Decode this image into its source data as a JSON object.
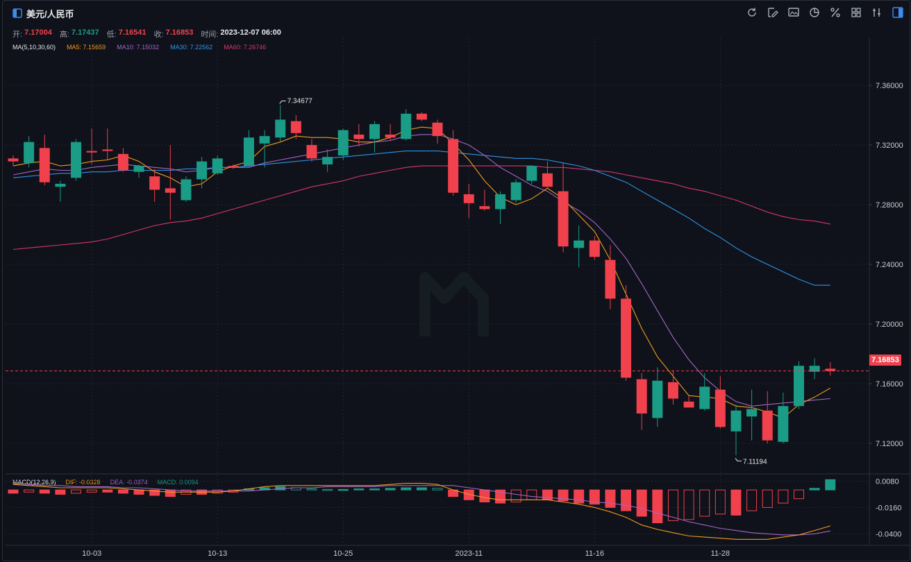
{
  "header": {
    "title": "美元/人民币",
    "icons": [
      "refresh-icon",
      "draw-tool-icon",
      "chart-image-icon",
      "pie-chart-icon",
      "percent-icon",
      "grid-layout-icon",
      "indicator-icon",
      "panel-toggle-icon"
    ]
  },
  "ohlc": {
    "open_label": "开:",
    "open": "7.17004",
    "high_label": "高:",
    "high": "7.17437",
    "low_label": "低:",
    "low": "7.16541",
    "close_label": "收:",
    "close": "7.16853",
    "time_label": "时间:",
    "time": "2023-12-07 06:00"
  },
  "ma_legend": {
    "label": "MA(5,10,30,60)",
    "ma5": "MA5: 7.15659",
    "ma10": "MA10: 7.15032",
    "ma30": "MA30: 7.22562",
    "ma60": "MA60: 7.26746"
  },
  "macd_legend": {
    "label": "MACD(12,26,9)",
    "dif": "DIF: -0.0328",
    "dea": "DEA: -0.0374",
    "macd": "MACD: 0.0094"
  },
  "colors": {
    "up": "#1a9c87",
    "down": "#f0414d",
    "ma5": "#f39c1e",
    "ma10": "#a566c9",
    "ma30": "#2f95ea",
    "ma60": "#d9356f",
    "grid": "#23272f",
    "text": "#c9ccd3"
  },
  "chart_data": {
    "type": "candlestick",
    "price_axis": {
      "min": 7.1,
      "max": 7.38,
      "ticks": [
        "7.36000",
        "7.32000",
        "7.28000",
        "7.24000",
        "7.20000",
        "7.16000",
        "7.12000"
      ]
    },
    "x_ticks": [
      {
        "label": "10-03",
        "index": 5
      },
      {
        "label": "10-13",
        "index": 13
      },
      {
        "label": "10-25",
        "index": 21
      },
      {
        "label": "2023-11",
        "index": 29
      },
      {
        "label": "11-16",
        "index": 37
      },
      {
        "label": "11-28",
        "index": 45
      }
    ],
    "last_price": "7.16853",
    "high_marker": {
      "label": "7.34677",
      "index": 17,
      "value": 7.34677
    },
    "low_marker": {
      "label": "7.11194",
      "index": 46,
      "value": 7.11194
    },
    "candles": [
      {
        "o": 7.311,
        "h": 7.313,
        "c": 7.309,
        "l": 7.306
      },
      {
        "o": 7.308,
        "h": 7.326,
        "c": 7.322,
        "l": 7.305
      },
      {
        "o": 7.318,
        "h": 7.327,
        "c": 7.295,
        "l": 7.293
      },
      {
        "o": 7.292,
        "h": 7.296,
        "c": 7.294,
        "l": 7.282
      },
      {
        "o": 7.298,
        "h": 7.324,
        "c": 7.322,
        "l": 7.296
      },
      {
        "o": 7.316,
        "h": 7.331,
        "c": 7.315,
        "l": 7.307
      },
      {
        "o": 7.317,
        "h": 7.331,
        "c": 7.316,
        "l": 7.31
      },
      {
        "o": 7.314,
        "h": 7.318,
        "c": 7.303,
        "l": 7.302
      },
      {
        "o": 7.302,
        "h": 7.307,
        "c": 7.306,
        "l": 7.298
      },
      {
        "o": 7.299,
        "h": 7.304,
        "c": 7.29,
        "l": 7.282
      },
      {
        "o": 7.291,
        "h": 7.32,
        "c": 7.288,
        "l": 7.27
      },
      {
        "o": 7.283,
        "h": 7.299,
        "c": 7.297,
        "l": 7.282
      },
      {
        "o": 7.297,
        "h": 7.312,
        "c": 7.309,
        "l": 7.291
      },
      {
        "o": 7.301,
        "h": 7.313,
        "c": 7.311,
        "l": 7.3
      },
      {
        "o": 7.306,
        "h": 7.307,
        "c": 7.305,
        "l": 7.304
      },
      {
        "o": 7.306,
        "h": 7.33,
        "c": 7.325,
        "l": 7.305
      },
      {
        "o": 7.321,
        "h": 7.33,
        "c": 7.326,
        "l": 7.305
      },
      {
        "o": 7.325,
        "h": 7.34677,
        "c": 7.337,
        "l": 7.322
      },
      {
        "o": 7.336,
        "h": 7.34,
        "c": 7.328,
        "l": 7.324
      },
      {
        "o": 7.32,
        "h": 7.324,
        "c": 7.311,
        "l": 7.309
      },
      {
        "o": 7.307,
        "h": 7.317,
        "c": 7.312,
        "l": 7.302
      },
      {
        "o": 7.313,
        "h": 7.331,
        "c": 7.33,
        "l": 7.31
      },
      {
        "o": 7.327,
        "h": 7.334,
        "c": 7.324,
        "l": 7.319
      },
      {
        "o": 7.324,
        "h": 7.336,
        "c": 7.334,
        "l": 7.315
      },
      {
        "o": 7.327,
        "h": 7.334,
        "c": 7.325,
        "l": 7.323
      },
      {
        "o": 7.324,
        "h": 7.344,
        "c": 7.341,
        "l": 7.323
      },
      {
        "o": 7.341,
        "h": 7.342,
        "c": 7.337,
        "l": 7.336
      },
      {
        "o": 7.335,
        "h": 7.337,
        "c": 7.326,
        "l": 7.321
      },
      {
        "o": 7.324,
        "h": 7.33,
        "c": 7.288,
        "l": 7.286
      },
      {
        "o": 7.287,
        "h": 7.294,
        "c": 7.281,
        "l": 7.271
      },
      {
        "o": 7.279,
        "h": 7.29,
        "c": 7.277,
        "l": 7.276
      },
      {
        "o": 7.277,
        "h": 7.289,
        "c": 7.287,
        "l": 7.267
      },
      {
        "o": 7.283,
        "h": 7.297,
        "c": 7.295,
        "l": 7.281
      },
      {
        "o": 7.296,
        "h": 7.306,
        "c": 7.306,
        "l": 7.294
      },
      {
        "o": 7.301,
        "h": 7.309,
        "c": 7.292,
        "l": 7.291
      },
      {
        "o": 7.289,
        "h": 7.308,
        "c": 7.252,
        "l": 7.248
      },
      {
        "o": 7.251,
        "h": 7.266,
        "c": 7.256,
        "l": 7.238
      },
      {
        "o": 7.256,
        "h": 7.259,
        "c": 7.245,
        "l": 7.243
      },
      {
        "o": 7.243,
        "h": 7.253,
        "c": 7.217,
        "l": 7.21
      },
      {
        "o": 7.217,
        "h": 7.226,
        "c": 7.164,
        "l": 7.162
      },
      {
        "o": 7.163,
        "h": 7.167,
        "c": 7.14,
        "l": 7.129
      },
      {
        "o": 7.137,
        "h": 7.171,
        "c": 7.162,
        "l": 7.131
      },
      {
        "o": 7.161,
        "h": 7.169,
        "c": 7.15,
        "l": 7.146
      },
      {
        "o": 7.148,
        "h": 7.152,
        "c": 7.144,
        "l": 7.144
      },
      {
        "o": 7.143,
        "h": 7.167,
        "c": 7.158,
        "l": 7.142
      },
      {
        "o": 7.156,
        "h": 7.165,
        "c": 7.131,
        "l": 7.13
      },
      {
        "o": 7.128,
        "h": 7.146,
        "c": 7.142,
        "l": 7.11194
      },
      {
        "o": 7.138,
        "h": 7.156,
        "c": 7.143,
        "l": 7.122
      },
      {
        "o": 7.142,
        "h": 7.155,
        "c": 7.122,
        "l": 7.12
      },
      {
        "o": 7.121,
        "h": 7.154,
        "c": 7.145,
        "l": 7.12
      },
      {
        "o": 7.145,
        "h": 7.175,
        "c": 7.172,
        "l": 7.143
      },
      {
        "o": 7.168,
        "h": 7.177,
        "c": 7.172,
        "l": 7.163
      },
      {
        "o": 7.17004,
        "h": 7.17437,
        "c": 7.16853,
        "l": 7.16541
      }
    ],
    "ma5": [
      7.306,
      7.308,
      7.309,
      7.306,
      7.307,
      7.309,
      7.31,
      7.313,
      7.309,
      7.302,
      7.298,
      7.292,
      7.294,
      7.302,
      7.306,
      7.309,
      7.319,
      7.322,
      7.326,
      7.325,
      7.325,
      7.324,
      7.322,
      7.322,
      7.325,
      7.33,
      7.332,
      7.331,
      7.321,
      7.31,
      7.296,
      7.285,
      7.28,
      7.284,
      7.291,
      7.284,
      7.273,
      7.262,
      7.243,
      7.22,
      7.197,
      7.178,
      7.165,
      7.152,
      7.151,
      7.15,
      7.145,
      7.144,
      7.141,
      7.137,
      7.146,
      7.151,
      7.157
    ],
    "ma10": [
      7.3,
      7.302,
      7.304,
      7.303,
      7.303,
      7.305,
      7.306,
      7.307,
      7.306,
      7.305,
      7.304,
      7.302,
      7.303,
      7.305,
      7.305,
      7.305,
      7.308,
      7.31,
      7.312,
      7.314,
      7.316,
      7.318,
      7.32,
      7.322,
      7.323,
      7.326,
      7.327,
      7.327,
      7.324,
      7.32,
      7.313,
      7.305,
      7.299,
      7.293,
      7.289,
      7.282,
      7.276,
      7.268,
      7.257,
      7.244,
      7.227,
      7.209,
      7.191,
      7.176,
      7.164,
      7.155,
      7.148,
      7.145,
      7.146,
      7.147,
      7.148,
      7.149,
      7.15
    ],
    "ma30": [
      7.298,
      7.299,
      7.3,
      7.301,
      7.301,
      7.302,
      7.302,
      7.303,
      7.303,
      7.303,
      7.303,
      7.304,
      7.304,
      7.305,
      7.305,
      7.306,
      7.307,
      7.308,
      7.309,
      7.31,
      7.311,
      7.312,
      7.313,
      7.314,
      7.315,
      7.316,
      7.316,
      7.316,
      7.315,
      7.314,
      7.313,
      7.312,
      7.311,
      7.311,
      7.31,
      7.308,
      7.306,
      7.303,
      7.299,
      7.295,
      7.289,
      7.283,
      7.277,
      7.271,
      7.264,
      7.258,
      7.251,
      7.245,
      7.24,
      7.235,
      7.23,
      7.226,
      7.226
    ],
    "ma60": [
      7.25,
      7.251,
      7.252,
      7.253,
      7.254,
      7.255,
      7.257,
      7.26,
      7.263,
      7.266,
      7.268,
      7.269,
      7.271,
      7.274,
      7.277,
      7.28,
      7.283,
      7.286,
      7.289,
      7.292,
      7.294,
      7.296,
      7.299,
      7.301,
      7.303,
      7.305,
      7.306,
      7.306,
      7.306,
      7.306,
      7.306,
      7.306,
      7.306,
      7.306,
      7.305,
      7.305,
      7.304,
      7.303,
      7.302,
      7.3,
      7.298,
      7.296,
      7.294,
      7.291,
      7.289,
      7.286,
      7.283,
      7.279,
      7.275,
      7.272,
      7.27,
      7.269,
      7.267
    ],
    "macd_axis": {
      "min": -0.048,
      "max": 0.014,
      "ticks": [
        "0.0080",
        "-0.0160",
        "-0.0400"
      ]
    },
    "macd_hist": [
      -0.003,
      -0.002,
      -0.003,
      -0.004,
      -0.003,
      -0.002,
      -0.002,
      -0.003,
      -0.004,
      -0.005,
      -0.006,
      -0.004,
      -0.004,
      -0.003,
      -0.002,
      0.001,
      0.002,
      0.003,
      0.002,
      0.001,
      0.0005,
      0.0005,
      0.001,
      0.001,
      0.0015,
      0.002,
      0.002,
      0.0015,
      -0.006,
      -0.009,
      -0.011,
      -0.012,
      -0.011,
      -0.009,
      -0.009,
      -0.01,
      -0.012,
      -0.013,
      -0.016,
      -0.019,
      -0.024,
      -0.03,
      -0.028,
      -0.027,
      -0.024,
      -0.022,
      -0.023,
      -0.019,
      -0.016,
      -0.012,
      -0.008,
      0.0015,
      0.0094
    ],
    "dif": [
      0.005,
      0.004,
      0.003,
      0.002,
      0.002,
      0.002,
      0.002,
      0.001,
      0.0,
      -0.001,
      -0.002,
      -0.002,
      -0.002,
      -0.002,
      -0.001,
      0.001,
      0.003,
      0.004,
      0.004,
      0.004,
      0.004,
      0.004,
      0.004,
      0.004,
      0.005,
      0.006,
      0.006,
      0.005,
      0.0,
      -0.004,
      -0.007,
      -0.009,
      -0.009,
      -0.009,
      -0.009,
      -0.011,
      -0.013,
      -0.016,
      -0.02,
      -0.025,
      -0.032,
      -0.036,
      -0.039,
      -0.042,
      -0.043,
      -0.044,
      -0.045,
      -0.045,
      -0.045,
      -0.043,
      -0.041,
      -0.037,
      -0.0328
    ],
    "dea": [
      0.006,
      0.005,
      0.004,
      0.004,
      0.003,
      0.003,
      0.003,
      0.002,
      0.002,
      0.001,
      0.0,
      -0.001,
      -0.001,
      -0.001,
      -0.001,
      -0.001,
      0.0,
      0.001,
      0.002,
      0.002,
      0.003,
      0.003,
      0.003,
      0.003,
      0.004,
      0.004,
      0.004,
      0.004,
      0.004,
      0.002,
      0.0,
      -0.002,
      -0.004,
      -0.006,
      -0.007,
      -0.008,
      -0.009,
      -0.011,
      -0.012,
      -0.014,
      -0.017,
      -0.021,
      -0.025,
      -0.029,
      -0.032,
      -0.035,
      -0.037,
      -0.039,
      -0.04,
      -0.041,
      -0.041,
      -0.04,
      -0.0374
    ]
  }
}
